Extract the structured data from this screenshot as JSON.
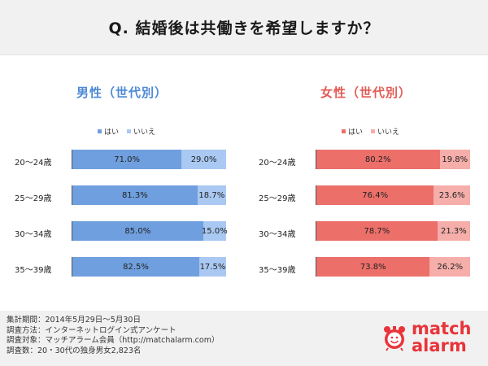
{
  "header": {
    "title": "Q. 結婚後は共働きを希望しますか？"
  },
  "colors": {
    "male_yes": "#6f9fde",
    "male_no": "#a9c8f2",
    "female_yes": "#ec6f6a",
    "female_no": "#f5aeaa",
    "male_title": "#4e8ad6",
    "female_title": "#e25a55",
    "logo": "#e8343a"
  },
  "chart_data": [
    {
      "type": "bar",
      "title": "男性（世代別）",
      "orientation": "horizontal",
      "stacked": true,
      "categories": [
        "20〜24歳",
        "25〜29歳",
        "30〜34歳",
        "35〜39歳"
      ],
      "series": [
        {
          "name": "はい",
          "values": [
            71.0,
            81.3,
            85.0,
            82.5
          ],
          "labels": [
            "71.0%",
            "81.3%",
            "85.0%",
            "82.5%"
          ]
        },
        {
          "name": "いいえ",
          "values": [
            29.0,
            18.7,
            15.0,
            17.5
          ],
          "labels": [
            "29.0%",
            "18.7%",
            "15.0%",
            "17.5%"
          ]
        }
      ],
      "xlim": [
        0,
        100
      ],
      "legend": "top"
    },
    {
      "type": "bar",
      "title": "女性（世代別）",
      "orientation": "horizontal",
      "stacked": true,
      "categories": [
        "20〜24歳",
        "25〜29歳",
        "30〜34歳",
        "35〜39歳"
      ],
      "series": [
        {
          "name": "はい",
          "values": [
            80.2,
            76.4,
            78.7,
            73.8
          ],
          "labels": [
            "80.2%",
            "76.4%",
            "78.7%",
            "73.8%"
          ]
        },
        {
          "name": "いいえ",
          "values": [
            19.8,
            23.6,
            21.3,
            26.2
          ],
          "labels": [
            "19.8%",
            "23.6%",
            "21.3%",
            "26.2%"
          ]
        }
      ],
      "xlim": [
        0,
        100
      ],
      "legend": "top"
    }
  ],
  "footer": {
    "notes": [
      "集計期間：2014年5月29日〜5月30日",
      "調査方法：インターネットログイン式アンケート",
      "調査対象：マッチアラーム会員（http://matchalarm.com）",
      "調査数：20・30代の独身男女2,823名"
    ],
    "logo_line1": "match",
    "logo_line2": "alarm",
    "logo_icon": "alarm-clock-smiley-icon"
  }
}
